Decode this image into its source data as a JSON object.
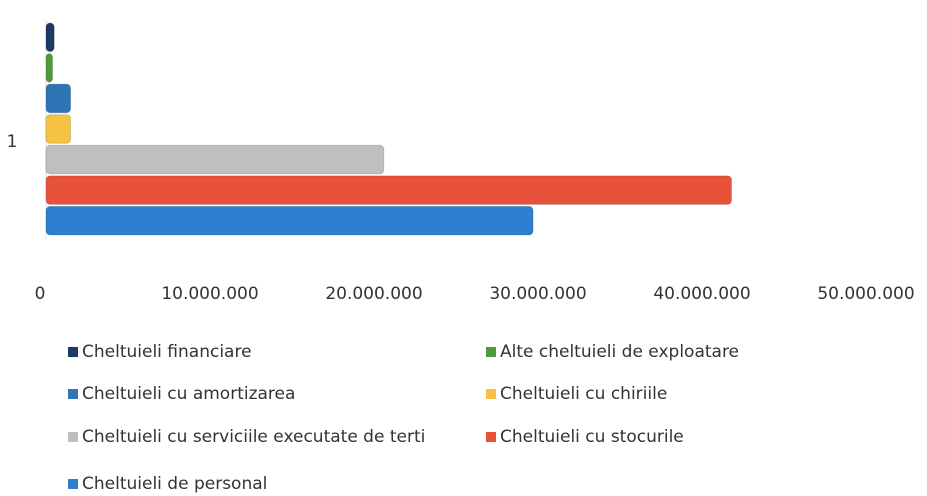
{
  "chart_data": {
    "type": "bar",
    "orientation": "horizontal",
    "categories": [
      "1"
    ],
    "series": [
      {
        "name": "Cheltuieli financiare",
        "color": "#1f3864",
        "values": [
          500000
        ]
      },
      {
        "name": "Alte cheltuieli de exploatare",
        "color": "#4e9a3a",
        "values": [
          400000
        ]
      },
      {
        "name": "Cheltuieli cu amortizarea",
        "color": "#2e75b6",
        "values": [
          1500000
        ]
      },
      {
        "name": "Cheltuieli cu chiriile",
        "color": "#f5c242",
        "values": [
          1500000
        ]
      },
      {
        "name": "Cheltuieli cu serviciile executate de terti",
        "color": "#bfbfbf",
        "values": [
          20600000
        ]
      },
      {
        "name": "Cheltuieli cu stocurile",
        "color": "#e8523a",
        "values": [
          41800000
        ]
      },
      {
        "name": "Cheltuieli de personal",
        "color": "#2f7fd1",
        "values": [
          29700000
        ]
      }
    ],
    "xlim": [
      0,
      50000000
    ],
    "xticks": [
      0,
      {
        "value": 10000000,
        "label": "10.000.000"
      },
      {
        "value": 20000000,
        "label": "20.000.000"
      },
      {
        "value": 30000000,
        "label": "30.000.000"
      },
      {
        "value": 40000000,
        "label": "40.000.000"
      },
      {
        "value": 50000000,
        "label": "50.000.000"
      }
    ],
    "grid": false,
    "legend": "bottom"
  }
}
